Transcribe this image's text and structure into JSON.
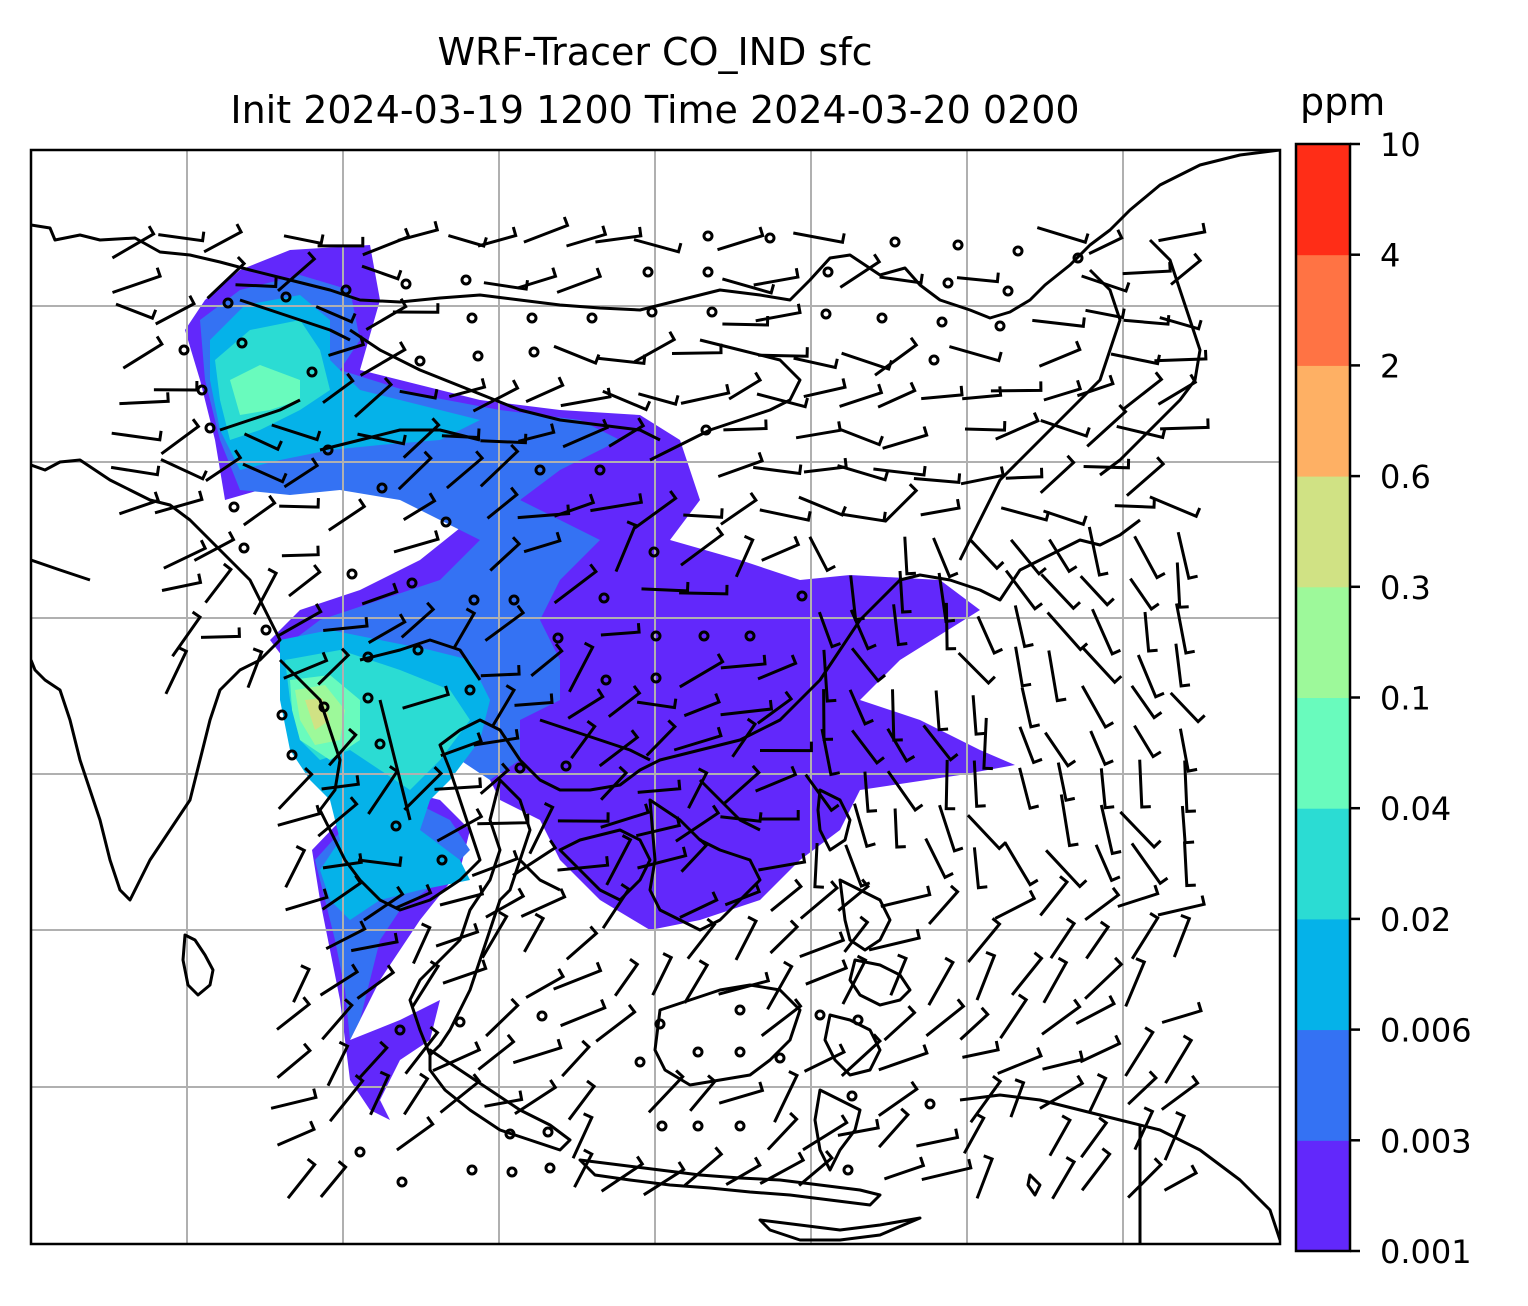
{
  "title": {
    "line1": "WRF-Tracer CO_IND sfc",
    "line2": "Init 2024-03-19 1200 Time 2024-03-20 0200"
  },
  "colorbar": {
    "units": "ppm",
    "levels": [
      "0.001",
      "0.003",
      "0.006",
      "0.02",
      "0.04",
      "0.1",
      "0.3",
      "0.6",
      "2",
      "4",
      "10"
    ],
    "colors": [
      "#6228fb",
      "#3472f3",
      "#05b2e9",
      "#2bdcd3",
      "#69fbbd",
      "#9df99a",
      "#d0e284",
      "#feb064",
      "#ff7344",
      "#ff2d17"
    ]
  },
  "map": {
    "gridlines": true,
    "wind_barbs": true,
    "shading_colors": {
      "level1": "#6228fb",
      "level2": "#3472f3",
      "level3": "#05b2e9",
      "level4": "#2bdcd3",
      "level5": "#69fbbd",
      "level6": "#9df99a",
      "level7": "#d0e284"
    }
  }
}
